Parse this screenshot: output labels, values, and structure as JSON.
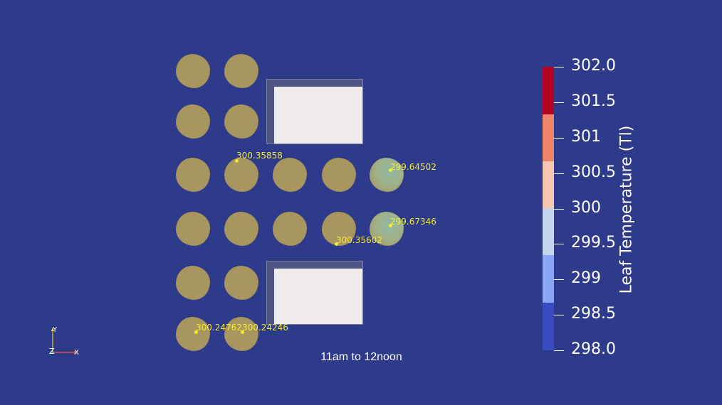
{
  "caption": "11am to 12noon",
  "probes": [
    {
      "label": "300.35858"
    },
    {
      "label": "299.64502"
    },
    {
      "label": "299.67346"
    },
    {
      "label": "300.35602"
    },
    {
      "label": "300.24762"
    },
    {
      "label": "300.24246"
    }
  ],
  "colorbar": {
    "title": "Leaf Temperature (Tl)",
    "ticks": [
      "302.0",
      "301.5",
      "301",
      "300.5",
      "300",
      "299.5",
      "299",
      "298.5",
      "298.0"
    ],
    "colors": [
      "#b40426",
      "#f08368",
      "#f6c6b3",
      "#c6d5f0",
      "#89a6f7",
      "#3b4cc0"
    ]
  },
  "axes": {
    "y": "Y",
    "z": "Z",
    "x": "X"
  },
  "colors": {
    "background": "#2e3a8a",
    "canopy": "#a89660",
    "probe": "#f2ea2b",
    "building": "#efebeb"
  }
}
